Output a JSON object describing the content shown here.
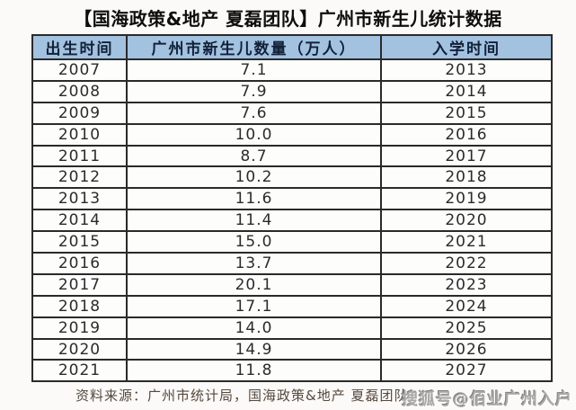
{
  "title": "【国海政策&地产 夏磊团队】广州市新生儿统计数据",
  "table": {
    "headers": [
      "出生时间",
      "广州市新生儿数量（万人）",
      "入学时间"
    ],
    "rows": [
      [
        "2007",
        "7.1",
        "2013"
      ],
      [
        "2008",
        "7.9",
        "2014"
      ],
      [
        "2009",
        "7.6",
        "2015"
      ],
      [
        "2010",
        "10.0",
        "2016"
      ],
      [
        "2011",
        "8.7",
        "2017"
      ],
      [
        "2012",
        "10.2",
        "2018"
      ],
      [
        "2013",
        "11.6",
        "2019"
      ],
      [
        "2014",
        "11.4",
        "2020"
      ],
      [
        "2015",
        "15.0",
        "2021"
      ],
      [
        "2016",
        "13.7",
        "2022"
      ],
      [
        "2017",
        "20.1",
        "2023"
      ],
      [
        "2018",
        "17.1",
        "2024"
      ],
      [
        "2019",
        "14.0",
        "2025"
      ],
      [
        "2020",
        "14.9",
        "2026"
      ],
      [
        "2021",
        "11.8",
        "2027"
      ]
    ]
  },
  "footer": {
    "source": "资料来源：广州市统计局，国海政策&地产 夏磊团队"
  },
  "watermark": "搜狐号@佰业广州入户",
  "colors": {
    "header_bg": "#a2c2e0",
    "header_text": "#122138",
    "border": "#2a2a2a",
    "body_text": "#2b2b2b",
    "title_text": "#0e0e0e",
    "source_text": "#55483e",
    "watermark_text": "#aaaaaa",
    "page_bg": "#fbfaf8"
  },
  "chart_data": {
    "type": "table",
    "title": "【国海政策&地产 夏磊团队】广州市新生儿统计数据",
    "columns": [
      "出生时间",
      "广州市新生儿数量（万人）",
      "入学时间"
    ],
    "rows": [
      [
        2007,
        7.1,
        2013
      ],
      [
        2008,
        7.9,
        2014
      ],
      [
        2009,
        7.6,
        2015
      ],
      [
        2010,
        10.0,
        2016
      ],
      [
        2011,
        8.7,
        2017
      ],
      [
        2012,
        10.2,
        2018
      ],
      [
        2013,
        11.6,
        2019
      ],
      [
        2014,
        11.4,
        2020
      ],
      [
        2015,
        15.0,
        2021
      ],
      [
        2016,
        13.7,
        2022
      ],
      [
        2017,
        20.1,
        2023
      ],
      [
        2018,
        17.1,
        2024
      ],
      [
        2019,
        14.0,
        2025
      ],
      [
        2020,
        14.9,
        2026
      ],
      [
        2021,
        11.8,
        2027
      ]
    ],
    "source": "资料来源：广州市统计局，国海政策&地产 夏磊团队"
  }
}
